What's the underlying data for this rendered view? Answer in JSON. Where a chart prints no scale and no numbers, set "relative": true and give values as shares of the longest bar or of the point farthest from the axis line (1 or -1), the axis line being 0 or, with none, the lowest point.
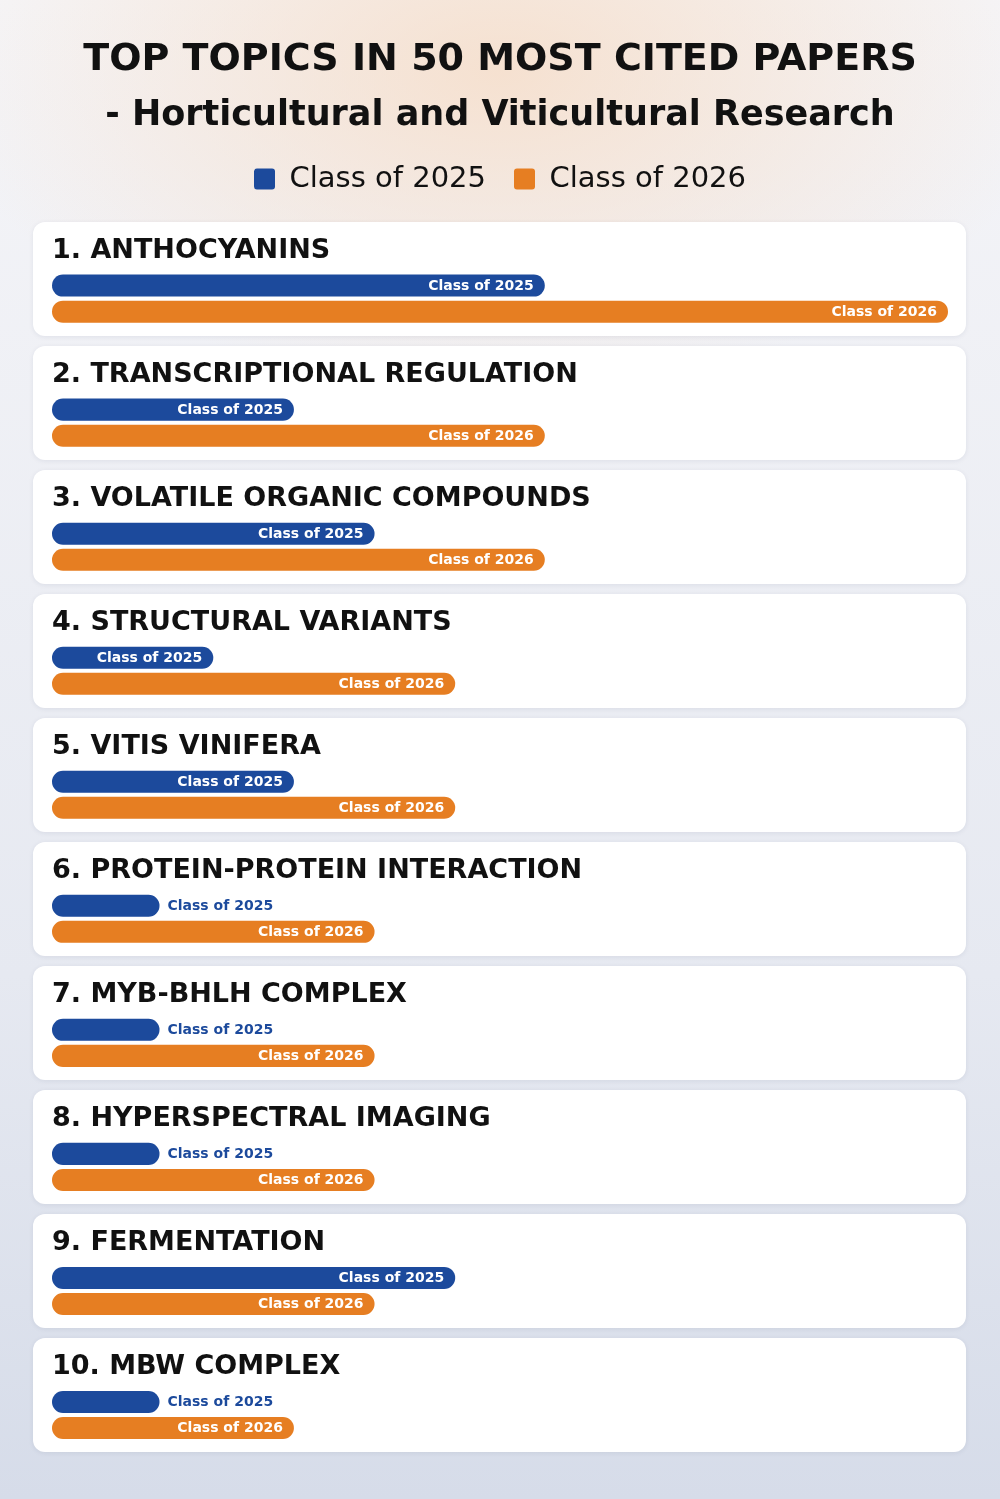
{
  "chart_data": {
    "type": "bar",
    "orientation": "horizontal",
    "relative": true,
    "title": "TOP TOPICS IN 50 MOST CITED PAPERS",
    "subtitle": "- Horticultural and Viticultural Research",
    "categories": [
      "1. ANTHOCYANINS",
      "2. TRANSCRIPTIONAL REGULATION",
      "3. VOLATILE ORGANIC COMPOUNDS",
      "4. STRUCTURAL VARIANTS",
      "5. VITIS VINIFERA",
      "6. PROTEIN-PROTEIN INTERACTION",
      "7. MYB-BHLH COMPLEX",
      "8. HYPERSPECTRAL IMAGING",
      "9. FERMENTATION",
      "10. MBW COMPLEX"
    ],
    "series": [
      {
        "name": "Class of 2025",
        "color": "#1c4a9c",
        "values": [
          0.55,
          0.27,
          0.36,
          0.18,
          0.27,
          0.12,
          0.12,
          0.12,
          0.45,
          0.12
        ]
      },
      {
        "name": "Class of 2026",
        "color": "#e67e22",
        "values": [
          1,
          0.55,
          0.55,
          0.45,
          0.45,
          0.36,
          0.36,
          0.36,
          0.36,
          0.27
        ]
      }
    ],
    "legend": "top"
  }
}
